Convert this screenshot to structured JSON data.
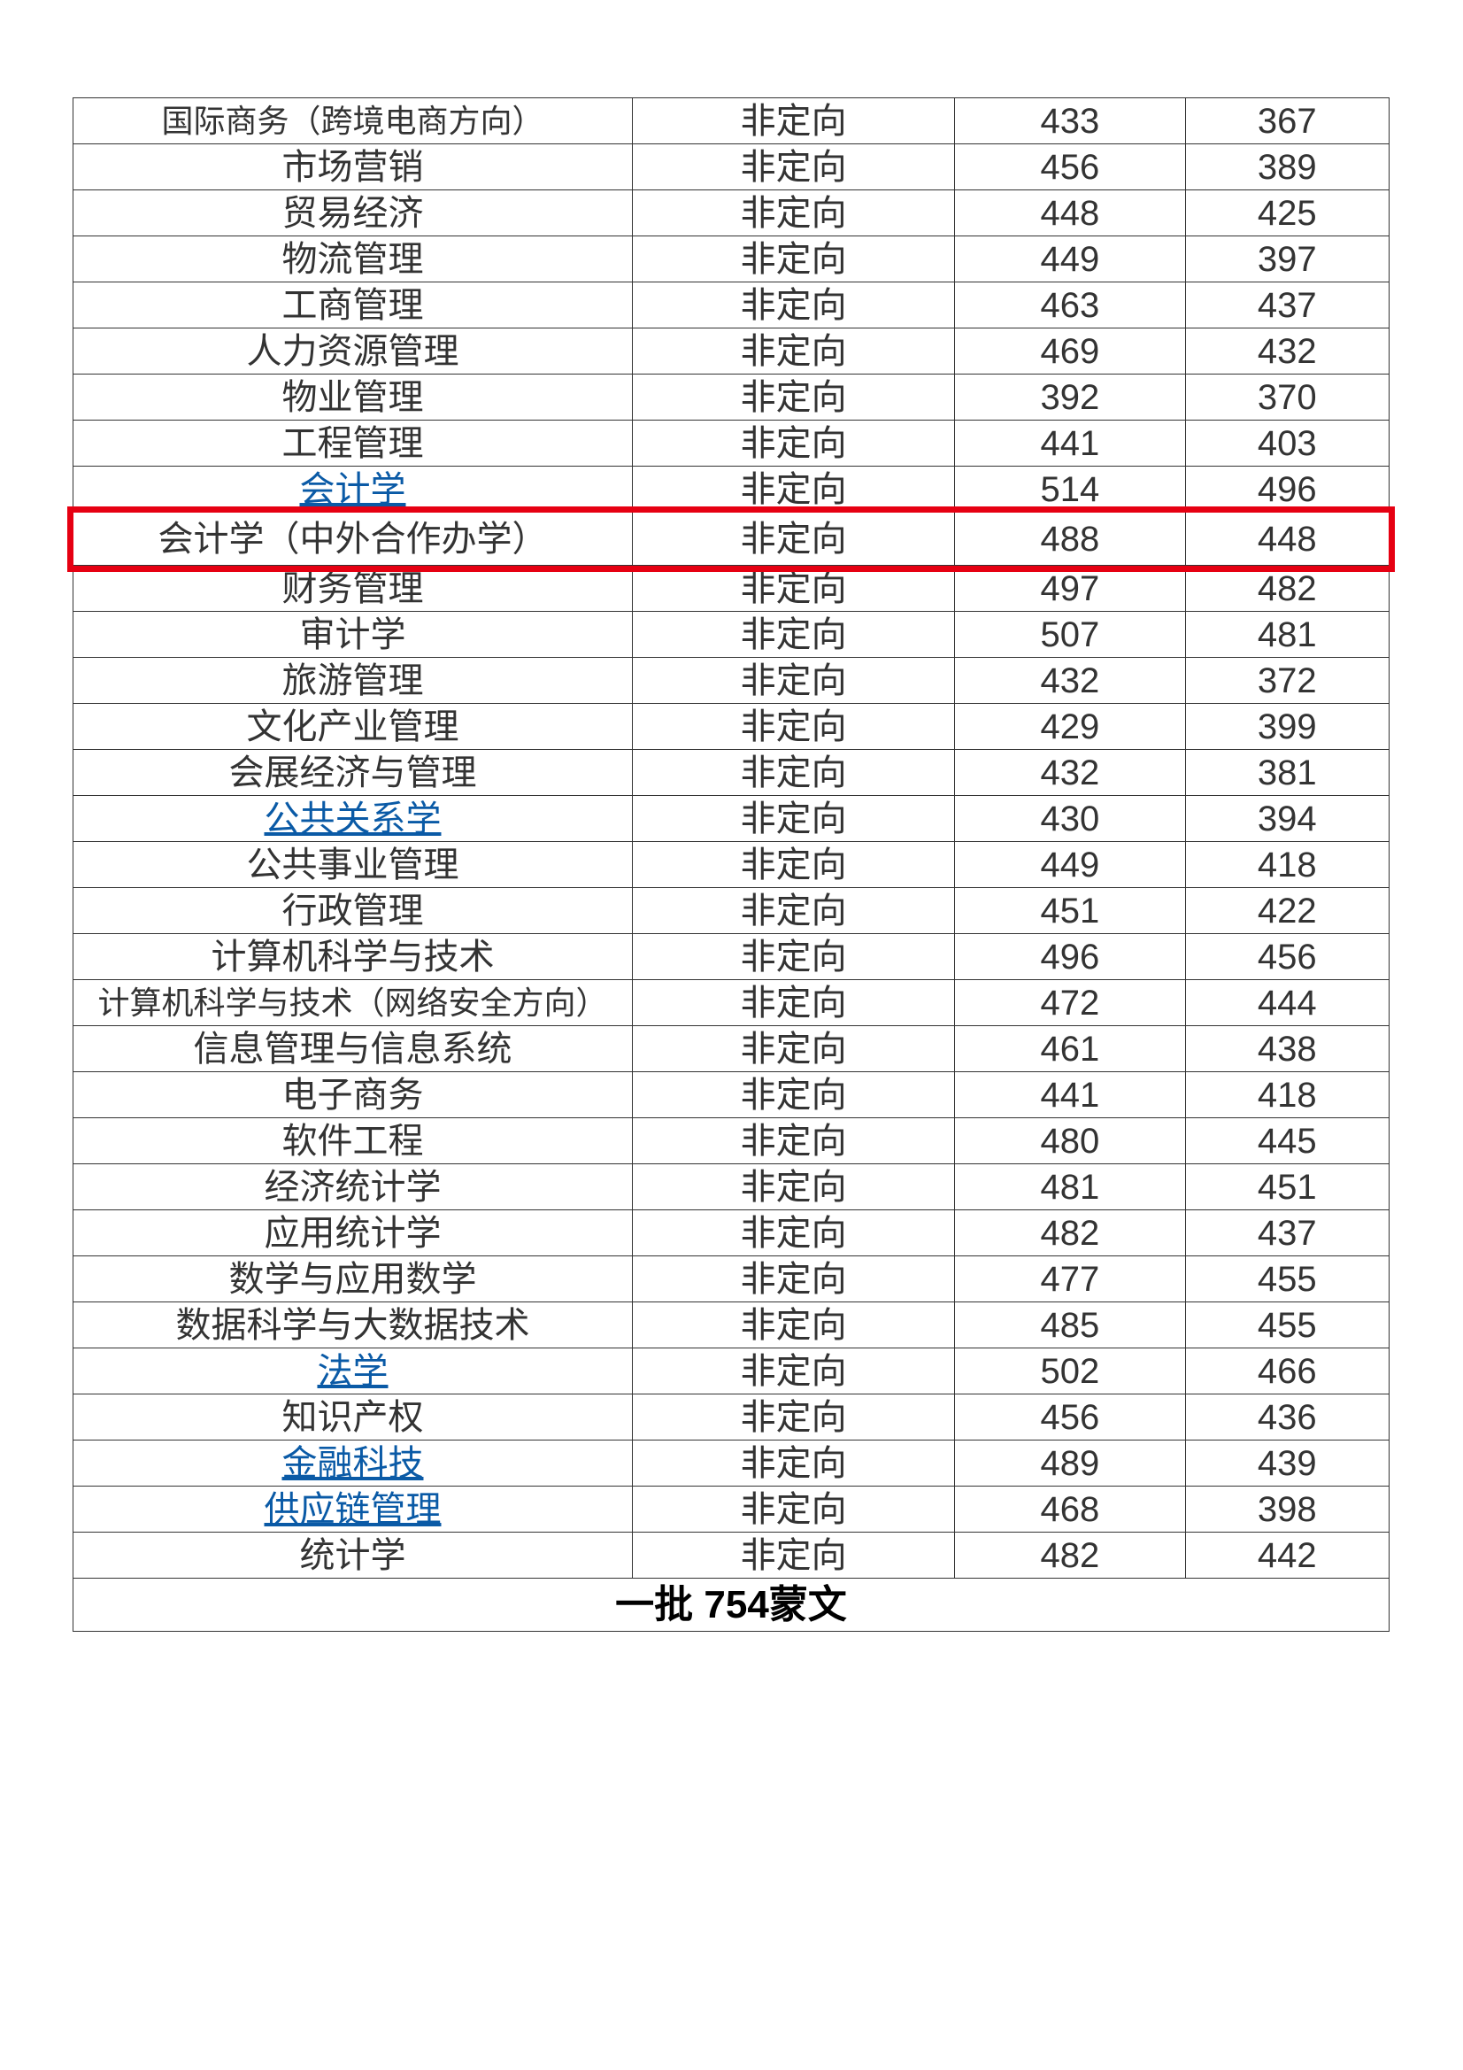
{
  "table": {
    "columns": [
      "major",
      "type",
      "score1",
      "score2"
    ],
    "column_widths_pct": [
      42.5,
      24.5,
      17.5,
      15.5
    ],
    "cell_fontsize": 40,
    "cell_color": "#333333",
    "link_color": "#0a5aa6",
    "border_color": "#333333",
    "background_color": "#ffffff",
    "highlight_border_color": "#e60012",
    "highlight_row_index": 9,
    "rows": [
      {
        "major": "国际商务（跨境电商方向）",
        "type": "非定向",
        "score1": "433",
        "score2": "367",
        "truncated": true
      },
      {
        "major": "市场营销",
        "type": "非定向",
        "score1": "456",
        "score2": "389"
      },
      {
        "major": "贸易经济",
        "type": "非定向",
        "score1": "448",
        "score2": "425"
      },
      {
        "major": "物流管理",
        "type": "非定向",
        "score1": "449",
        "score2": "397"
      },
      {
        "major": "工商管理",
        "type": "非定向",
        "score1": "463",
        "score2": "437"
      },
      {
        "major": "人力资源管理",
        "type": "非定向",
        "score1": "469",
        "score2": "432"
      },
      {
        "major": "物业管理",
        "type": "非定向",
        "score1": "392",
        "score2": "370"
      },
      {
        "major": "工程管理",
        "type": "非定向",
        "score1": "441",
        "score2": "403"
      },
      {
        "major": "会计学",
        "type": "非定向",
        "score1": "514",
        "score2": "496",
        "link": true
      },
      {
        "major": "会计学（中外合作办学）",
        "type": "非定向",
        "score1": "488",
        "score2": "448",
        "highlight": true
      },
      {
        "major": "财务管理",
        "type": "非定向",
        "score1": "497",
        "score2": "482"
      },
      {
        "major": "审计学",
        "type": "非定向",
        "score1": "507",
        "score2": "481"
      },
      {
        "major": "旅游管理",
        "type": "非定向",
        "score1": "432",
        "score2": "372"
      },
      {
        "major": "文化产业管理",
        "type": "非定向",
        "score1": "429",
        "score2": "399"
      },
      {
        "major": "会展经济与管理",
        "type": "非定向",
        "score1": "432",
        "score2": "381"
      },
      {
        "major": "公共关系学",
        "type": "非定向",
        "score1": "430",
        "score2": "394",
        "link": true
      },
      {
        "major": "公共事业管理",
        "type": "非定向",
        "score1": "449",
        "score2": "418"
      },
      {
        "major": "行政管理",
        "type": "非定向",
        "score1": "451",
        "score2": "422"
      },
      {
        "major": "计算机科学与技术",
        "type": "非定向",
        "score1": "496",
        "score2": "456"
      },
      {
        "major": "计算机科学与技术（网络安全方向）",
        "type": "非定向",
        "score1": "472",
        "score2": "444",
        "truncated": true
      },
      {
        "major": "信息管理与信息系统",
        "type": "非定向",
        "score1": "461",
        "score2": "438"
      },
      {
        "major": "电子商务",
        "type": "非定向",
        "score1": "441",
        "score2": "418"
      },
      {
        "major": "软件工程",
        "type": "非定向",
        "score1": "480",
        "score2": "445"
      },
      {
        "major": "经济统计学",
        "type": "非定向",
        "score1": "481",
        "score2": "451"
      },
      {
        "major": "应用统计学",
        "type": "非定向",
        "score1": "482",
        "score2": "437"
      },
      {
        "major": "数学与应用数学",
        "type": "非定向",
        "score1": "477",
        "score2": "455"
      },
      {
        "major": "数据科学与大数据技术",
        "type": "非定向",
        "score1": "485",
        "score2": "455"
      },
      {
        "major": "法学",
        "type": "非定向",
        "score1": "502",
        "score2": "466",
        "link": true
      },
      {
        "major": "知识产权",
        "type": "非定向",
        "score1": "456",
        "score2": "436"
      },
      {
        "major": "金融科技",
        "type": "非定向",
        "score1": "489",
        "score2": "439",
        "link": true
      },
      {
        "major": "供应链管理",
        "type": "非定向",
        "score1": "468",
        "score2": "398",
        "link": true
      },
      {
        "major": "统计学",
        "type": "非定向",
        "score1": "482",
        "score2": "442"
      }
    ],
    "section_header": "一批 754蒙文"
  }
}
